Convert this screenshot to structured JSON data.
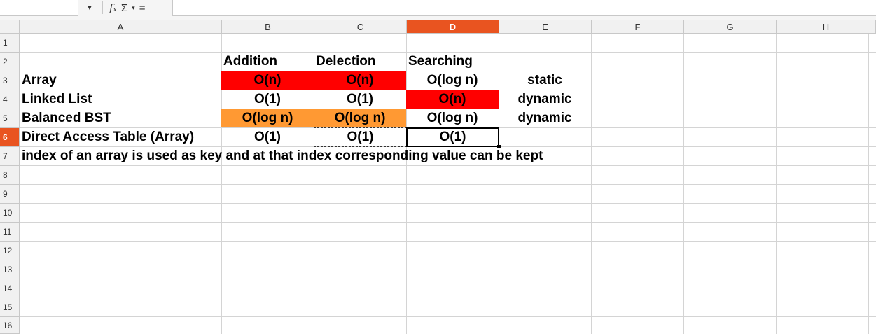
{
  "formula_bar": {
    "dropdown_icon": "chevron-down-icon",
    "function_wizard": "fₓ",
    "sum": "Σ",
    "sum_drop": "▾",
    "equals": "="
  },
  "columns": [
    "A",
    "B",
    "C",
    "D",
    "E",
    "F",
    "G",
    "H"
  ],
  "selected_column": "D",
  "rows": [
    "1",
    "2",
    "3",
    "4",
    "5",
    "6",
    "7",
    "8",
    "9",
    "10",
    "11",
    "12",
    "13",
    "14",
    "15",
    "16"
  ],
  "selected_row": "6",
  "cells": {
    "B2": "Addition",
    "C2": "Delection",
    "D2": "Searching",
    "A3": "Array",
    "B3": "O(n)",
    "C3": "O(n)",
    "D3": "O(log n)",
    "E3": "static",
    "A4": "Linked List",
    "B4": "O(1)",
    "C4": "O(1)",
    "D4": "O(n)",
    "E4": "dynamic",
    "A5": "Balanced BST",
    "B5": "O(log n)",
    "C5": "O(log n)",
    "D5": "O(log n)",
    "E5": "dynamic",
    "A6": "Direct Access Table (Array)",
    "B6": "O(1)",
    "C6": "O(1)",
    "D6": "O(1)",
    "A7": "index of an array is used as key and at that index corresponding value can be kept"
  },
  "colors": {
    "highlight_red": "#ff0000",
    "highlight_orange": "#ff9933",
    "selection_accent": "#e95420"
  }
}
